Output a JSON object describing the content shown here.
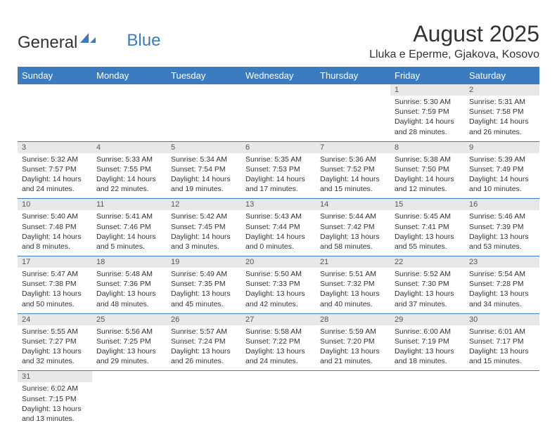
{
  "logo": {
    "part1": "General",
    "part2": "Blue"
  },
  "title": "August 2025",
  "location": "Lluka e Eperme, Gjakova, Kosovo",
  "colors": {
    "header_bg": "#3b7bbf",
    "header_text": "#ffffff",
    "daynum_bg": "#e8e8e8",
    "daynum_text": "#555555",
    "cell_border": "#3b7bbf",
    "body_text": "#333333",
    "logo_blue": "#3b7bbf"
  },
  "day_labels": [
    "Sunday",
    "Monday",
    "Tuesday",
    "Wednesday",
    "Thursday",
    "Friday",
    "Saturday"
  ],
  "weeks": [
    [
      null,
      null,
      null,
      null,
      null,
      {
        "n": "1",
        "sr": "Sunrise: 5:30 AM",
        "ss": "Sunset: 7:59 PM",
        "dl1": "Daylight: 14 hours",
        "dl2": "and 28 minutes."
      },
      {
        "n": "2",
        "sr": "Sunrise: 5:31 AM",
        "ss": "Sunset: 7:58 PM",
        "dl1": "Daylight: 14 hours",
        "dl2": "and 26 minutes."
      }
    ],
    [
      {
        "n": "3",
        "sr": "Sunrise: 5:32 AM",
        "ss": "Sunset: 7:57 PM",
        "dl1": "Daylight: 14 hours",
        "dl2": "and 24 minutes."
      },
      {
        "n": "4",
        "sr": "Sunrise: 5:33 AM",
        "ss": "Sunset: 7:55 PM",
        "dl1": "Daylight: 14 hours",
        "dl2": "and 22 minutes."
      },
      {
        "n": "5",
        "sr": "Sunrise: 5:34 AM",
        "ss": "Sunset: 7:54 PM",
        "dl1": "Daylight: 14 hours",
        "dl2": "and 19 minutes."
      },
      {
        "n": "6",
        "sr": "Sunrise: 5:35 AM",
        "ss": "Sunset: 7:53 PM",
        "dl1": "Daylight: 14 hours",
        "dl2": "and 17 minutes."
      },
      {
        "n": "7",
        "sr": "Sunrise: 5:36 AM",
        "ss": "Sunset: 7:52 PM",
        "dl1": "Daylight: 14 hours",
        "dl2": "and 15 minutes."
      },
      {
        "n": "8",
        "sr": "Sunrise: 5:38 AM",
        "ss": "Sunset: 7:50 PM",
        "dl1": "Daylight: 14 hours",
        "dl2": "and 12 minutes."
      },
      {
        "n": "9",
        "sr": "Sunrise: 5:39 AM",
        "ss": "Sunset: 7:49 PM",
        "dl1": "Daylight: 14 hours",
        "dl2": "and 10 minutes."
      }
    ],
    [
      {
        "n": "10",
        "sr": "Sunrise: 5:40 AM",
        "ss": "Sunset: 7:48 PM",
        "dl1": "Daylight: 14 hours",
        "dl2": "and 8 minutes."
      },
      {
        "n": "11",
        "sr": "Sunrise: 5:41 AM",
        "ss": "Sunset: 7:46 PM",
        "dl1": "Daylight: 14 hours",
        "dl2": "and 5 minutes."
      },
      {
        "n": "12",
        "sr": "Sunrise: 5:42 AM",
        "ss": "Sunset: 7:45 PM",
        "dl1": "Daylight: 14 hours",
        "dl2": "and 3 minutes."
      },
      {
        "n": "13",
        "sr": "Sunrise: 5:43 AM",
        "ss": "Sunset: 7:44 PM",
        "dl1": "Daylight: 14 hours",
        "dl2": "and 0 minutes."
      },
      {
        "n": "14",
        "sr": "Sunrise: 5:44 AM",
        "ss": "Sunset: 7:42 PM",
        "dl1": "Daylight: 13 hours",
        "dl2": "and 58 minutes."
      },
      {
        "n": "15",
        "sr": "Sunrise: 5:45 AM",
        "ss": "Sunset: 7:41 PM",
        "dl1": "Daylight: 13 hours",
        "dl2": "and 55 minutes."
      },
      {
        "n": "16",
        "sr": "Sunrise: 5:46 AM",
        "ss": "Sunset: 7:39 PM",
        "dl1": "Daylight: 13 hours",
        "dl2": "and 53 minutes."
      }
    ],
    [
      {
        "n": "17",
        "sr": "Sunrise: 5:47 AM",
        "ss": "Sunset: 7:38 PM",
        "dl1": "Daylight: 13 hours",
        "dl2": "and 50 minutes."
      },
      {
        "n": "18",
        "sr": "Sunrise: 5:48 AM",
        "ss": "Sunset: 7:36 PM",
        "dl1": "Daylight: 13 hours",
        "dl2": "and 48 minutes."
      },
      {
        "n": "19",
        "sr": "Sunrise: 5:49 AM",
        "ss": "Sunset: 7:35 PM",
        "dl1": "Daylight: 13 hours",
        "dl2": "and 45 minutes."
      },
      {
        "n": "20",
        "sr": "Sunrise: 5:50 AM",
        "ss": "Sunset: 7:33 PM",
        "dl1": "Daylight: 13 hours",
        "dl2": "and 42 minutes."
      },
      {
        "n": "21",
        "sr": "Sunrise: 5:51 AM",
        "ss": "Sunset: 7:32 PM",
        "dl1": "Daylight: 13 hours",
        "dl2": "and 40 minutes."
      },
      {
        "n": "22",
        "sr": "Sunrise: 5:52 AM",
        "ss": "Sunset: 7:30 PM",
        "dl1": "Daylight: 13 hours",
        "dl2": "and 37 minutes."
      },
      {
        "n": "23",
        "sr": "Sunrise: 5:54 AM",
        "ss": "Sunset: 7:28 PM",
        "dl1": "Daylight: 13 hours",
        "dl2": "and 34 minutes."
      }
    ],
    [
      {
        "n": "24",
        "sr": "Sunrise: 5:55 AM",
        "ss": "Sunset: 7:27 PM",
        "dl1": "Daylight: 13 hours",
        "dl2": "and 32 minutes."
      },
      {
        "n": "25",
        "sr": "Sunrise: 5:56 AM",
        "ss": "Sunset: 7:25 PM",
        "dl1": "Daylight: 13 hours",
        "dl2": "and 29 minutes."
      },
      {
        "n": "26",
        "sr": "Sunrise: 5:57 AM",
        "ss": "Sunset: 7:24 PM",
        "dl1": "Daylight: 13 hours",
        "dl2": "and 26 minutes."
      },
      {
        "n": "27",
        "sr": "Sunrise: 5:58 AM",
        "ss": "Sunset: 7:22 PM",
        "dl1": "Daylight: 13 hours",
        "dl2": "and 24 minutes."
      },
      {
        "n": "28",
        "sr": "Sunrise: 5:59 AM",
        "ss": "Sunset: 7:20 PM",
        "dl1": "Daylight: 13 hours",
        "dl2": "and 21 minutes."
      },
      {
        "n": "29",
        "sr": "Sunrise: 6:00 AM",
        "ss": "Sunset: 7:19 PM",
        "dl1": "Daylight: 13 hours",
        "dl2": "and 18 minutes."
      },
      {
        "n": "30",
        "sr": "Sunrise: 6:01 AM",
        "ss": "Sunset: 7:17 PM",
        "dl1": "Daylight: 13 hours",
        "dl2": "and 15 minutes."
      }
    ],
    [
      {
        "n": "31",
        "sr": "Sunrise: 6:02 AM",
        "ss": "Sunset: 7:15 PM",
        "dl1": "Daylight: 13 hours",
        "dl2": "and 13 minutes."
      },
      null,
      null,
      null,
      null,
      null,
      null
    ]
  ]
}
